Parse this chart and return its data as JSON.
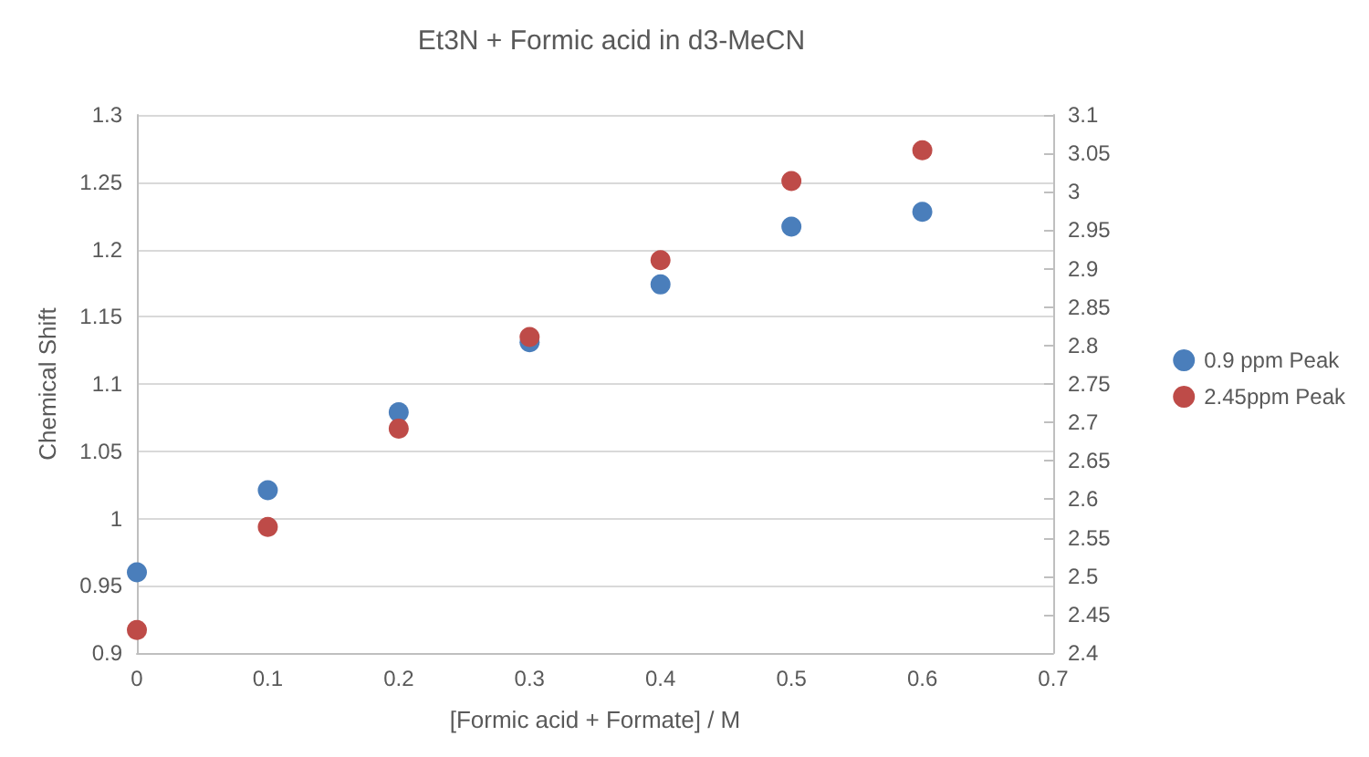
{
  "chart_data": {
    "type": "scatter",
    "title": "Et3N + Formic acid in d3-MeCN",
    "xlabel": "[Formic acid + Formate] / M",
    "ylabel": "Chemical Shift",
    "x": [
      0,
      0.1,
      0.2,
      0.3,
      0.4,
      0.5,
      0.6
    ],
    "series": [
      {
        "name": "0.9 ppm Peak",
        "color": "#4a7ebb",
        "values": [
          0.96,
          1.021,
          1.079,
          1.131,
          1.174,
          1.217,
          1.228
        ]
      },
      {
        "name": "2.45ppm Peak",
        "color": "#be4b48",
        "axis": "y2",
        "values": [
          2.43,
          2.564,
          2.692,
          2.811,
          2.911,
          3.014,
          3.054
        ]
      }
    ],
    "xlim": [
      0,
      0.7
    ],
    "xticks": [
      0,
      0.1,
      0.2,
      0.3,
      0.4,
      0.5,
      0.6,
      0.7
    ],
    "ylim": [
      0.9,
      1.3
    ],
    "yticks": [
      0.9,
      0.95,
      1,
      1.05,
      1.1,
      1.15,
      1.2,
      1.25,
      1.3
    ],
    "y2lim": [
      2.4,
      3.1
    ],
    "y2ticks": [
      2.4,
      2.45,
      2.5,
      2.55,
      2.6,
      2.65,
      2.7,
      2.75,
      2.8,
      2.85,
      2.9,
      2.95,
      3,
      3.05,
      3.1
    ],
    "grid": "y",
    "legend": "right",
    "marker": "circle"
  }
}
